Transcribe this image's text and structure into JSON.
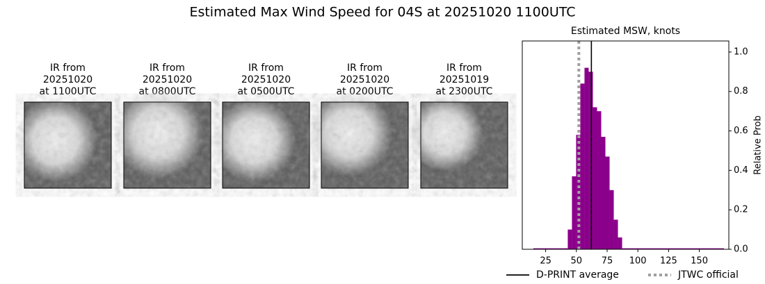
{
  "title": "Estimated Max Wind Speed for 04S at 20251020 1100UTC",
  "images": [
    {
      "label": [
        "IR from",
        "20251020",
        "at 1100UTC"
      ]
    },
    {
      "label": [
        "IR from",
        "20251020",
        "at 0800UTC"
      ]
    },
    {
      "label": [
        "IR from",
        "20251020",
        "at 0500UTC"
      ]
    },
    {
      "label": [
        "IR from",
        "20251020",
        "at 0200UTC"
      ]
    },
    {
      "label": [
        "IR from",
        "20251019",
        "at 2300UTC"
      ]
    }
  ],
  "chart_data": {
    "type": "histogram",
    "title": "Estimated MSW, knots",
    "y_label": "Relative Prob",
    "color": "#8b008b",
    "bins": [
      15,
      43,
      46.4,
      49.8,
      53.2,
      56.6,
      60,
      63.4,
      66.8,
      70.2,
      73.6,
      77,
      80.4,
      83.8,
      87.2,
      170
    ],
    "values": [
      0.005,
      0.1,
      0.37,
      0.58,
      0.84,
      0.92,
      0.9,
      0.72,
      0.7,
      0.57,
      0.47,
      0.3,
      0.15,
      0.06,
      0.005
    ],
    "xlim": [
      6,
      174
    ],
    "xticks": [
      25,
      50,
      75,
      100,
      125,
      150
    ],
    "ylim": [
      0,
      1.056
    ],
    "yticks": [
      {
        "value": 0,
        "label": "0.0"
      },
      0.2,
      0.4,
      0.6,
      0.8,
      {
        "value": 1,
        "label": "1.0"
      }
    ],
    "lines": [
      {
        "name": "D-PRINT average",
        "value": 62.2,
        "color": "#000000",
        "style": "solid"
      },
      {
        "name": "JTWC official",
        "value": 52,
        "color": "#a0a0a0",
        "style": "dotted"
      }
    ],
    "legend": "bottom"
  }
}
